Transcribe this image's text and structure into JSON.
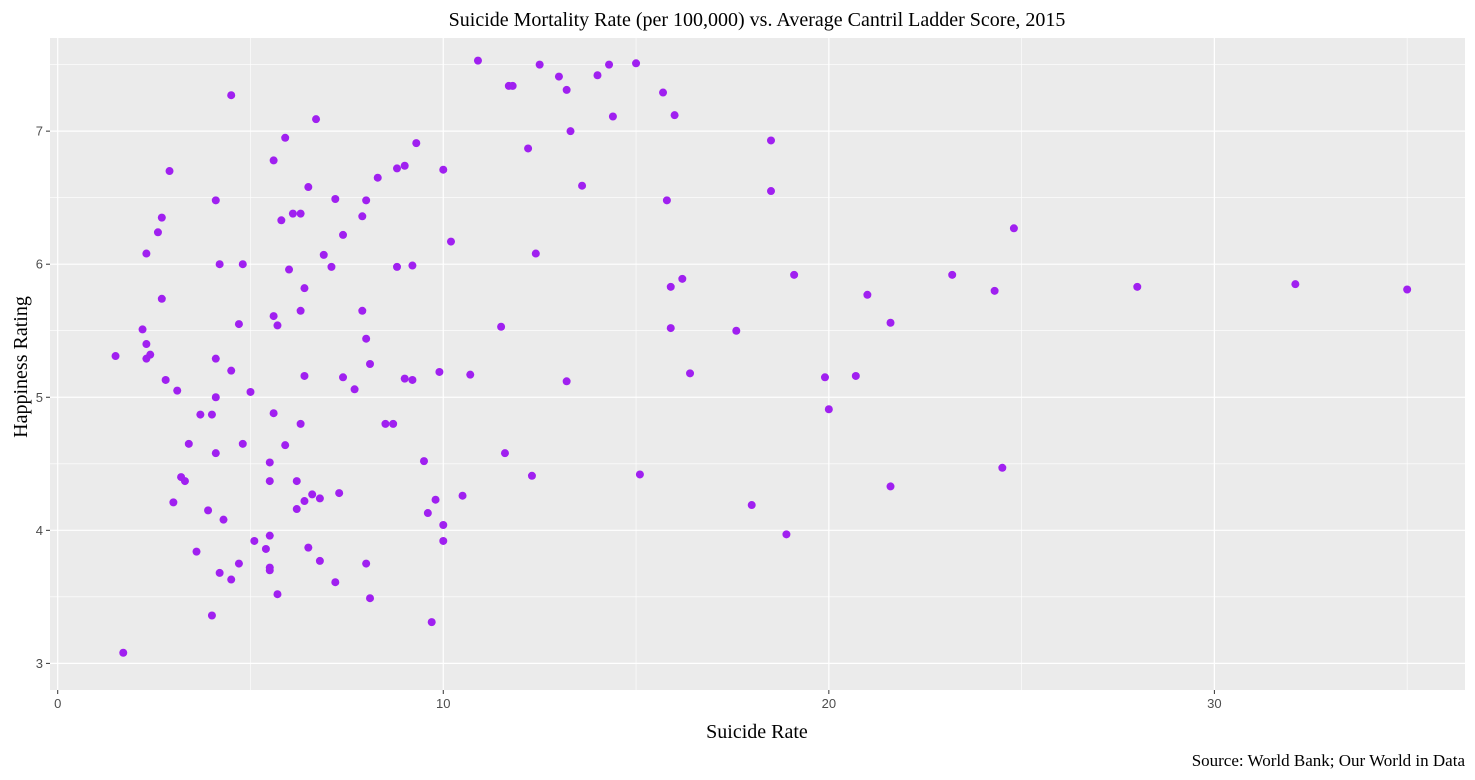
{
  "chart_data": {
    "type": "scatter",
    "title": "Suicide Mortality Rate (per 100,000) vs. Average Cantril Ladder Score, 2015",
    "xlabel": "Suicide Rate",
    "ylabel": "Happiness Rating",
    "caption": "Source: World Bank; Our World in Data",
    "xlim": [
      -0.2,
      36.5
    ],
    "ylim": [
      2.8,
      7.7
    ],
    "x_ticks": [
      0,
      10,
      20,
      30
    ],
    "y_ticks": [
      3,
      4,
      5,
      6,
      7
    ],
    "grid": true,
    "background": "#ebebeb",
    "grid_color": "#ffffff",
    "point_color": "#a020f0",
    "points": [
      [
        1.5,
        5.31
      ],
      [
        1.7,
        3.08
      ],
      [
        2.2,
        5.51
      ],
      [
        2.3,
        5.4
      ],
      [
        2.3,
        6.08
      ],
      [
        2.4,
        5.32
      ],
      [
        2.3,
        5.29
      ],
      [
        2.6,
        6.24
      ],
      [
        2.7,
        6.35
      ],
      [
        2.7,
        5.74
      ],
      [
        2.8,
        5.13
      ],
      [
        2.9,
        6.7
      ],
      [
        3.0,
        4.21
      ],
      [
        3.1,
        5.05
      ],
      [
        3.2,
        4.4
      ],
      [
        3.3,
        4.37
      ],
      [
        3.4,
        4.65
      ],
      [
        3.6,
        3.84
      ],
      [
        3.7,
        4.87
      ],
      [
        3.9,
        4.15
      ],
      [
        4.0,
        4.87
      ],
      [
        4.0,
        3.36
      ],
      [
        4.1,
        5.0
      ],
      [
        4.1,
        5.29
      ],
      [
        4.1,
        4.58
      ],
      [
        4.1,
        6.48
      ],
      [
        4.2,
        6.0
      ],
      [
        4.2,
        3.68
      ],
      [
        4.3,
        4.08
      ],
      [
        4.5,
        7.27
      ],
      [
        4.5,
        5.2
      ],
      [
        4.5,
        3.63
      ],
      [
        4.7,
        5.55
      ],
      [
        4.7,
        3.75
      ],
      [
        4.8,
        6.0
      ],
      [
        4.8,
        4.65
      ],
      [
        5.0,
        5.04
      ],
      [
        5.1,
        3.92
      ],
      [
        5.4,
        3.86
      ],
      [
        5.5,
        4.51
      ],
      [
        5.5,
        3.72
      ],
      [
        5.5,
        3.7
      ],
      [
        5.5,
        3.96
      ],
      [
        5.5,
        4.37
      ],
      [
        5.6,
        5.61
      ],
      [
        5.6,
        4.88
      ],
      [
        5.6,
        6.78
      ],
      [
        5.7,
        5.54
      ],
      [
        5.7,
        3.52
      ],
      [
        5.8,
        6.33
      ],
      [
        5.9,
        4.64
      ],
      [
        5.9,
        6.95
      ],
      [
        6.0,
        5.96
      ],
      [
        6.1,
        6.38
      ],
      [
        6.2,
        4.16
      ],
      [
        6.2,
        4.37
      ],
      [
        6.3,
        6.38
      ],
      [
        6.3,
        5.65
      ],
      [
        6.3,
        4.8
      ],
      [
        6.4,
        5.82
      ],
      [
        6.4,
        5.16
      ],
      [
        6.4,
        4.22
      ],
      [
        6.5,
        6.58
      ],
      [
        6.5,
        3.87
      ],
      [
        6.6,
        4.27
      ],
      [
        6.7,
        7.09
      ],
      [
        6.8,
        4.24
      ],
      [
        6.8,
        3.77
      ],
      [
        6.9,
        6.07
      ],
      [
        7.1,
        5.98
      ],
      [
        7.2,
        6.49
      ],
      [
        7.2,
        3.61
      ],
      [
        7.3,
        4.28
      ],
      [
        7.4,
        5.15
      ],
      [
        7.4,
        6.22
      ],
      [
        7.7,
        5.06
      ],
      [
        7.9,
        6.36
      ],
      [
        7.9,
        5.65
      ],
      [
        8.0,
        6.48
      ],
      [
        8.0,
        5.44
      ],
      [
        8.0,
        3.75
      ],
      [
        8.1,
        3.49
      ],
      [
        8.1,
        5.25
      ],
      [
        8.3,
        6.65
      ],
      [
        8.5,
        4.8
      ],
      [
        8.7,
        4.8
      ],
      [
        8.8,
        6.72
      ],
      [
        8.8,
        5.98
      ],
      [
        9.0,
        6.74
      ],
      [
        9.0,
        5.14
      ],
      [
        9.2,
        5.13
      ],
      [
        9.2,
        5.99
      ],
      [
        9.3,
        6.91
      ],
      [
        9.5,
        4.52
      ],
      [
        9.6,
        4.13
      ],
      [
        9.7,
        3.31
      ],
      [
        9.8,
        4.23
      ],
      [
        9.9,
        5.19
      ],
      [
        10.0,
        6.71
      ],
      [
        10.0,
        4.04
      ],
      [
        10.0,
        3.92
      ],
      [
        10.2,
        6.17
      ],
      [
        10.5,
        4.26
      ],
      [
        10.7,
        5.17
      ],
      [
        10.9,
        7.53
      ],
      [
        11.5,
        5.53
      ],
      [
        11.6,
        4.58
      ],
      [
        11.7,
        7.34
      ],
      [
        11.8,
        7.34
      ],
      [
        12.2,
        6.87
      ],
      [
        12.3,
        4.41
      ],
      [
        12.4,
        6.08
      ],
      [
        12.5,
        7.5
      ],
      [
        13.0,
        7.41
      ],
      [
        13.2,
        7.31
      ],
      [
        13.2,
        5.12
      ],
      [
        13.3,
        7.0
      ],
      [
        13.6,
        6.59
      ],
      [
        14.0,
        7.42
      ],
      [
        14.3,
        7.5
      ],
      [
        14.4,
        7.11
      ],
      [
        15.0,
        7.51
      ],
      [
        15.1,
        4.42
      ],
      [
        15.7,
        7.29
      ],
      [
        15.8,
        6.48
      ],
      [
        15.9,
        5.83
      ],
      [
        15.9,
        5.52
      ],
      [
        16.0,
        7.12
      ],
      [
        16.2,
        5.89
      ],
      [
        16.4,
        5.18
      ],
      [
        17.6,
        5.5
      ],
      [
        18.0,
        4.19
      ],
      [
        18.5,
        6.93
      ],
      [
        18.5,
        6.55
      ],
      [
        18.9,
        3.97
      ],
      [
        19.1,
        5.92
      ],
      [
        19.9,
        5.15
      ],
      [
        20.0,
        4.91
      ],
      [
        20.7,
        5.16
      ],
      [
        21.0,
        5.77
      ],
      [
        21.6,
        5.56
      ],
      [
        21.6,
        4.33
      ],
      [
        23.2,
        5.92
      ],
      [
        24.3,
        5.8
      ],
      [
        24.5,
        4.47
      ],
      [
        24.8,
        6.27
      ],
      [
        28.0,
        5.83
      ],
      [
        32.1,
        5.85
      ],
      [
        35.0,
        5.81
      ]
    ]
  }
}
